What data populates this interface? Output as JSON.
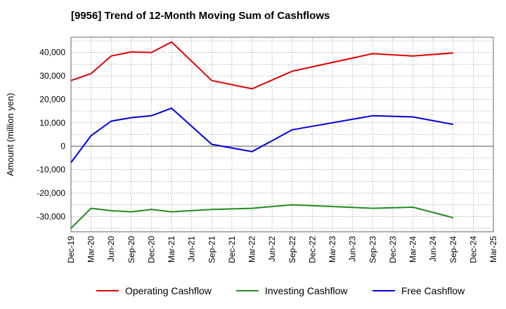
{
  "chart_data": {
    "type": "line",
    "title": "[9956]  Trend of 12-Month Moving Sum of Cashflows",
    "xlabel": "",
    "ylabel": "Amount (million yen)",
    "ylim": [
      -36500,
      46500
    ],
    "y_ticks": [
      40000,
      30000,
      20000,
      10000,
      0,
      -10000,
      -20000,
      -30000
    ],
    "y_tick_labels": [
      "40,000",
      "30,000",
      "20,000",
      "10,000",
      "0",
      "-10,000",
      "-20,000",
      "-30,000"
    ],
    "categories": [
      "Dec-19",
      "Mar-20",
      "Jun-20",
      "Sep-20",
      "Dec-20",
      "Mar-21",
      "Jun-21",
      "Sep-21",
      "Dec-21",
      "Mar-22",
      "Jun-22",
      "Sep-22",
      "Dec-22",
      "Mar-23",
      "Jun-23",
      "Sep-23",
      "Dec-23",
      "Mar-24",
      "Jun-24",
      "Sep-24",
      "Dec-24",
      "Mar-25"
    ],
    "grid": true,
    "legend_position": "bottom",
    "series": [
      {
        "name": "Operating Cashflow",
        "color": "#e00000",
        "values": [
          28000,
          31000,
          38500,
          40200,
          40000,
          44500,
          null,
          28000,
          null,
          24500,
          null,
          32000,
          null,
          null,
          null,
          39500,
          null,
          38500,
          null,
          39800,
          null,
          null
        ]
      },
      {
        "name": "Investing Cashflow",
        "color": "#228b22",
        "values": [
          -35000,
          -26500,
          -27500,
          -28000,
          -27000,
          -28000,
          null,
          -27000,
          null,
          -26500,
          null,
          -25000,
          null,
          null,
          null,
          -26500,
          null,
          -26000,
          null,
          -30500,
          null,
          null
        ]
      },
      {
        "name": "Free Cashflow",
        "color": "#0000dd",
        "values": [
          -7000,
          4500,
          10700,
          12200,
          13000,
          16200,
          null,
          800,
          null,
          -2300,
          null,
          7000,
          null,
          null,
          null,
          13000,
          null,
          12500,
          null,
          9300,
          null,
          null
        ]
      }
    ]
  }
}
